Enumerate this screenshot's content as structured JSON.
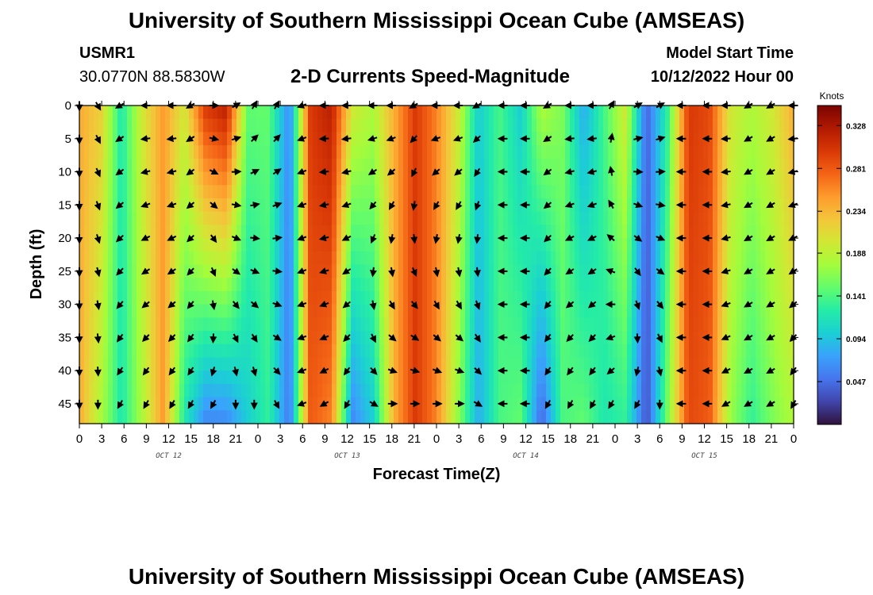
{
  "header": {
    "title": "University of Southern Mississippi Ocean Cube (AMSEAS)",
    "station_id": "USMR1",
    "station_coords": "30.0770N  88.5830W",
    "subtitle": "2-D Currents Speed-Magnitude",
    "model_start_label": "Model Start Time",
    "model_start_value": "10/12/2022 Hour 00"
  },
  "footer": {
    "title": "University of Southern Mississippi Ocean Cube (AMSEAS)"
  },
  "colors": {
    "colormap": [
      "#30123b",
      "#4145ab",
      "#4675ed",
      "#39a2fc",
      "#1bcfd4",
      "#24eca6",
      "#61fc6c",
      "#a4fc3b",
      "#d1e834",
      "#f3c63a",
      "#fe9b2d",
      "#f36315",
      "#d93806",
      "#b11901",
      "#7a0402"
    ]
  },
  "chart_data": {
    "type": "heatmap",
    "xlabel": "Forecast Time(Z)",
    "ylabel": "Depth (ft)",
    "x_range_hours": [
      0,
      96
    ],
    "y_range_ft": [
      0,
      48
    ],
    "x_tick_labels": [
      "0",
      "3",
      "6",
      "9",
      "12",
      "15",
      "18",
      "21",
      "0",
      "3",
      "6",
      "9",
      "12",
      "15",
      "18",
      "21",
      "0",
      "3",
      "6",
      "9",
      "12",
      "15",
      "18",
      "21",
      "0",
      "3",
      "6",
      "9",
      "12",
      "15",
      "18",
      "21",
      "0"
    ],
    "y_tick_labels": [
      "0",
      "5",
      "10",
      "15",
      "20",
      "25",
      "30",
      "35",
      "40",
      "45"
    ],
    "date_labels": [
      "OCT 12",
      "OCT 13",
      "OCT 14",
      "OCT 15"
    ],
    "colorbar": {
      "title": "Knots",
      "range": [
        0,
        0.35
      ],
      "tick_labels": [
        "0.047",
        "0.094",
        "0.141",
        "0.188",
        "0.234",
        "0.281",
        "0.328"
      ]
    },
    "arrow_times_hours": [
      0,
      2.5,
      5.5,
      9,
      12.5,
      15,
      18,
      21,
      23.5,
      26.5,
      30,
      33,
      36,
      39.5,
      42,
      45,
      48,
      51,
      53.5,
      57,
      60,
      63,
      66,
      69,
      71.5,
      75,
      78,
      81,
      84.5,
      87,
      90,
      93,
      96
    ],
    "arrow_depths_ft": [
      0,
      5,
      10,
      15,
      20,
      25,
      30,
      35,
      40,
      45
    ],
    "speed_profile_surface": [
      0.24,
      0.22,
      0.12,
      0.2,
      0.25,
      0.2,
      0.3,
      0.32,
      0.15,
      0.15,
      0.06,
      0.3,
      0.32,
      0.2,
      0.18,
      0.24,
      0.3,
      0.26,
      0.2,
      0.1,
      0.14,
      0.1,
      0.18,
      0.16,
      0.08,
      0.14,
      0.2,
      0.04,
      0.13,
      0.3,
      0.29,
      0.2,
      0.18,
      0.2,
      0.24
    ],
    "speed_profile_bottom": [
      0.24,
      0.18,
      0.12,
      0.18,
      0.25,
      0.12,
      0.06,
      0.06,
      0.1,
      0.13,
      0.05,
      0.28,
      0.26,
      0.06,
      0.1,
      0.24,
      0.3,
      0.26,
      0.17,
      0.08,
      0.14,
      0.15,
      0.04,
      0.14,
      0.15,
      0.12,
      0.13,
      0.03,
      0.16,
      0.29,
      0.28,
      0.17,
      0.13,
      0.16,
      0.18
    ],
    "direction_surface_deg": [
      90,
      60,
      150,
      180,
      180,
      150,
      0,
      -30,
      -60,
      -60,
      160,
      180,
      180,
      180,
      180,
      150,
      180,
      180,
      150,
      180,
      180,
      150,
      180,
      180,
      -60,
      -30,
      -30,
      180,
      180,
      180,
      150,
      150,
      180
    ],
    "direction_bottom_deg": [
      90,
      90,
      120,
      120,
      120,
      120,
      120,
      90,
      90,
      60,
      160,
      150,
      120,
      30,
      0,
      0,
      0,
      0,
      30,
      180,
      180,
      120,
      120,
      120,
      120,
      120,
      90,
      180,
      180,
      150,
      150,
      150,
      120
    ]
  }
}
